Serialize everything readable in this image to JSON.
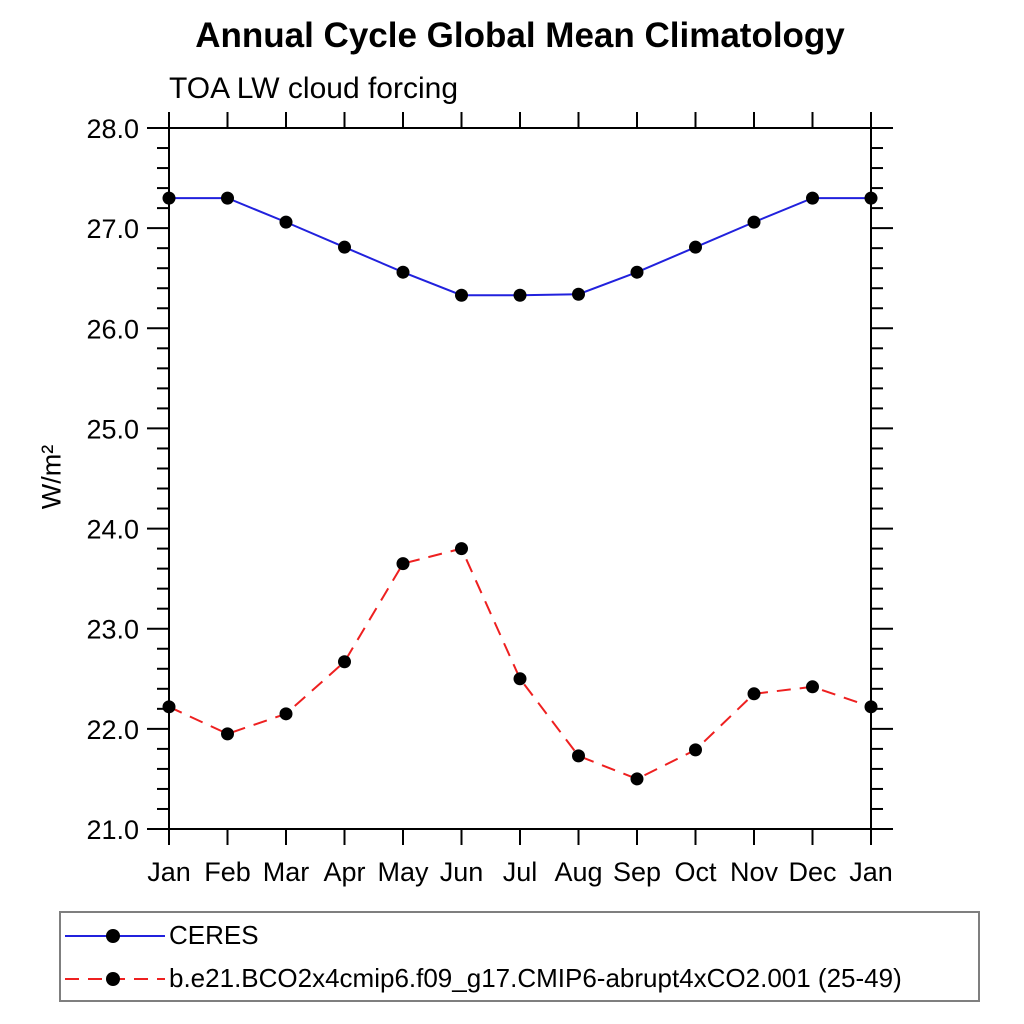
{
  "chart_data": {
    "type": "line",
    "title": "Annual Cycle Global Mean Climatology",
    "subtitle": "TOA LW cloud forcing",
    "ylabel": "W/m²",
    "x_categories": [
      "Jan",
      "Feb",
      "Mar",
      "Apr",
      "May",
      "Jun",
      "Jul",
      "Aug",
      "Sep",
      "Oct",
      "Nov",
      "Dec",
      "Jan"
    ],
    "ylim": [
      21.0,
      28.0
    ],
    "ytick_major_step": 1.0,
    "ytick_minor_step": 0.2,
    "ytick_labels": [
      "21.0",
      "22.0",
      "23.0",
      "24.0",
      "25.0",
      "26.0",
      "27.0",
      "28.0"
    ],
    "grid": "off",
    "legend_position": "bottom-left-box",
    "axis_color": "#000000",
    "marker_color": "#000000",
    "series": [
      {
        "name": "CERES",
        "line_style": "solid",
        "color": "#2121dd",
        "marker": "filled-circle",
        "values": [
          27.3,
          27.3,
          27.06,
          26.81,
          26.56,
          26.33,
          26.33,
          26.34,
          26.56,
          26.81,
          27.06,
          27.3,
          27.3
        ]
      },
      {
        "name": "b.e21.BCO2x4cmip6.f09_g17.CMIP6-abrupt4xCO2.001 (25-49)",
        "line_style": "dashed",
        "color": "#ee2020",
        "marker": "filled-circle",
        "values": [
          22.22,
          21.95,
          22.15,
          22.67,
          23.65,
          23.8,
          22.5,
          21.73,
          21.5,
          21.79,
          22.35,
          22.42,
          22.22
        ]
      }
    ]
  }
}
